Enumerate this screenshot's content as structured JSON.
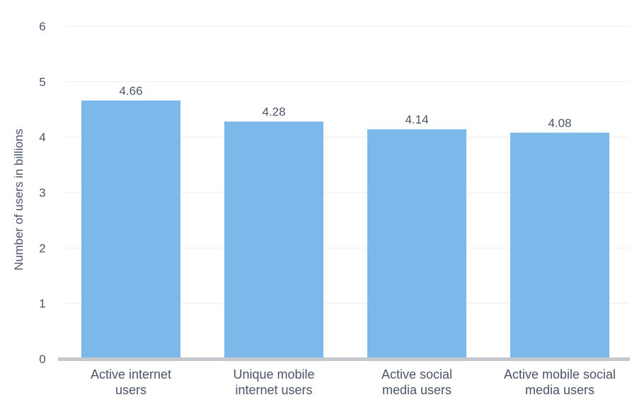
{
  "chart_data": {
    "type": "bar",
    "title": "",
    "xlabel": "",
    "ylabel": "Number of users in billions",
    "categories": [
      [
        "Active internet",
        "users"
      ],
      [
        "Unique mobile",
        "internet users"
      ],
      [
        "Active social",
        "media users"
      ],
      [
        "Active mobile social",
        "media users"
      ]
    ],
    "values": [
      4.66,
      4.28,
      4.14,
      4.08
    ],
    "value_labels": [
      "4.66",
      "4.28",
      "4.14",
      "4.08"
    ],
    "ylim": [
      0,
      6
    ],
    "yticks": [
      "0",
      "1",
      "2",
      "3",
      "4",
      "5",
      "6"
    ],
    "grid": true,
    "legend": "none",
    "colors": {
      "bar": "#7cb9ea",
      "grid": "#eceff3",
      "axis": "#c4c7cc",
      "text": "#4a5568"
    }
  }
}
